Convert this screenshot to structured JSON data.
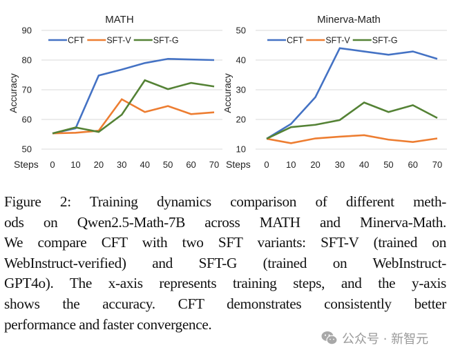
{
  "charts": [
    {
      "title": "MATH",
      "ylabel": "Accuracy",
      "xlabel": "Steps",
      "legend": [
        "CFT",
        "SFT-V",
        "SFT-G"
      ]
    },
    {
      "title": "Minerva-Math",
      "ylabel": "Accuracy",
      "xlabel": "Steps",
      "legend": [
        "CFT",
        "SFT-V",
        "SFT-G"
      ]
    }
  ],
  "colors": {
    "CFT": "#4472c4",
    "SFT-V": "#ed7d31",
    "SFT-G": "#548235",
    "grid": "#d9d9d9"
  },
  "chart_data": [
    {
      "type": "line",
      "title": "MATH",
      "xlabel": "Steps",
      "ylabel": "Accuracy",
      "x": [
        0,
        10,
        20,
        30,
        40,
        50,
        60,
        70
      ],
      "ylim": [
        50,
        90
      ],
      "yticks": [
        50,
        60,
        70,
        80,
        90
      ],
      "grid": true,
      "legend_position": "top-left",
      "series": [
        {
          "name": "CFT",
          "values": [
            55.3,
            57.0,
            74.8,
            76.8,
            79.0,
            80.4,
            80.2,
            80.0
          ]
        },
        {
          "name": "SFT-V",
          "values": [
            55.3,
            55.5,
            56.2,
            66.8,
            62.5,
            64.5,
            61.8,
            62.4
          ]
        },
        {
          "name": "SFT-G",
          "values": [
            55.3,
            57.3,
            55.8,
            61.6,
            73.2,
            70.2,
            72.3,
            71.1
          ]
        }
      ]
    },
    {
      "type": "line",
      "title": "Minerva-Math",
      "xlabel": "Steps",
      "ylabel": "Accuracy",
      "x": [
        0,
        10,
        20,
        30,
        40,
        50,
        60,
        70
      ],
      "ylim": [
        10,
        50
      ],
      "yticks": [
        10,
        20,
        30,
        40,
        50
      ],
      "grid": true,
      "legend_position": "top-left",
      "series": [
        {
          "name": "CFT",
          "values": [
            13.5,
            18.5,
            27.5,
            44.0,
            42.9,
            41.8,
            42.9,
            40.4
          ]
        },
        {
          "name": "SFT-V",
          "values": [
            13.5,
            12.0,
            13.6,
            14.2,
            14.7,
            13.2,
            12.4,
            13.6
          ]
        },
        {
          "name": "SFT-G",
          "values": [
            13.5,
            17.4,
            18.2,
            19.8,
            25.7,
            22.5,
            24.8,
            20.5
          ]
        }
      ]
    }
  ],
  "caption": {
    "lines": [
      "Figure 2: Training dynamics comparison of different meth-",
      "ods on Qwen2.5-Math-7B across MATH and Minerva-Math.",
      "We compare CFT with two SFT variants: SFT-V (trained on",
      "WebInstruct-verified) and SFT-G (trained on WebInstruct-",
      "GPT4o). The x-axis represents training steps, and the y-axis",
      "shows the accuracy. CFT demonstrates consistently better",
      "performance and faster convergence."
    ]
  },
  "watermark": {
    "text": "公众号 · 新智元",
    "icon": "wechat-icon"
  }
}
